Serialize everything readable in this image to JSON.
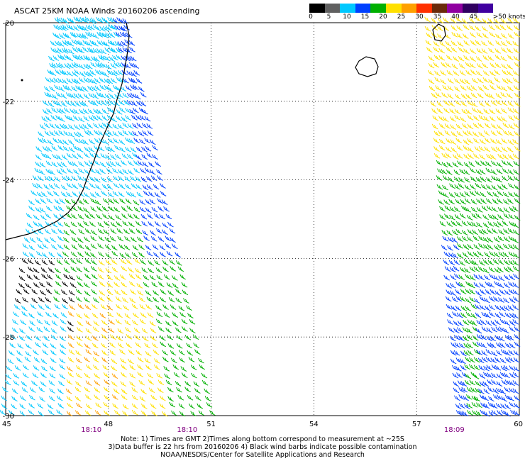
{
  "title": "ASCAT 25KM NOAA Winds 20160206 ascending",
  "legend": {
    "unit_label": ">50 knots",
    "labels": [
      "0",
      "5",
      "10",
      "15",
      "20",
      "25",
      "30",
      "35",
      "40",
      "45"
    ],
    "colors": [
      "#000000",
      "#606060",
      "#00c8ff",
      "#0040ff",
      "#00b000",
      "#ffe000",
      "#ffa000",
      "#ff3000",
      "#6a2a0a",
      "#9000a0",
      "#300060",
      "#4000a0"
    ]
  },
  "map": {
    "lon_range": [
      45,
      60
    ],
    "lat_range": [
      -30,
      -20
    ],
    "lat_ticks": [
      "-20",
      "-22",
      "-24",
      "-26",
      "-28",
      "-30"
    ],
    "lon_ticks": [
      "45",
      "48",
      "51",
      "54",
      "57",
      "60"
    ],
    "times": [
      "18:10",
      "18:10",
      "18:09"
    ],
    "time_lons": [
      47.5,
      50.3,
      58.1
    ],
    "swaths": [
      {
        "name": "west-swath",
        "corners": [
          [
            46.6,
            -20.0
          ],
          [
            48.6,
            -20.0
          ],
          [
            51.1,
            -30.0
          ],
          [
            45.0,
            -30.0
          ]
        ],
        "wind_kt": "5-35"
      },
      {
        "name": "east-swath",
        "corners": [
          [
            57.4,
            -20.0
          ],
          [
            60.0,
            -20.0
          ],
          [
            60.0,
            -30.0
          ],
          [
            58.3,
            -30.0
          ]
        ],
        "wind_kt": "10-25"
      }
    ]
  },
  "notes": {
    "line1": "Note: 1) Times are GMT 2)Times along bottom correspond to measurement at ~25S",
    "line2": "3)Data buffer is 22 hrs from 20160206 4) Black wind barbs indicate possible contamination",
    "line3": "NOAA/NESDIS/Center for Satellite Applications and Research"
  }
}
